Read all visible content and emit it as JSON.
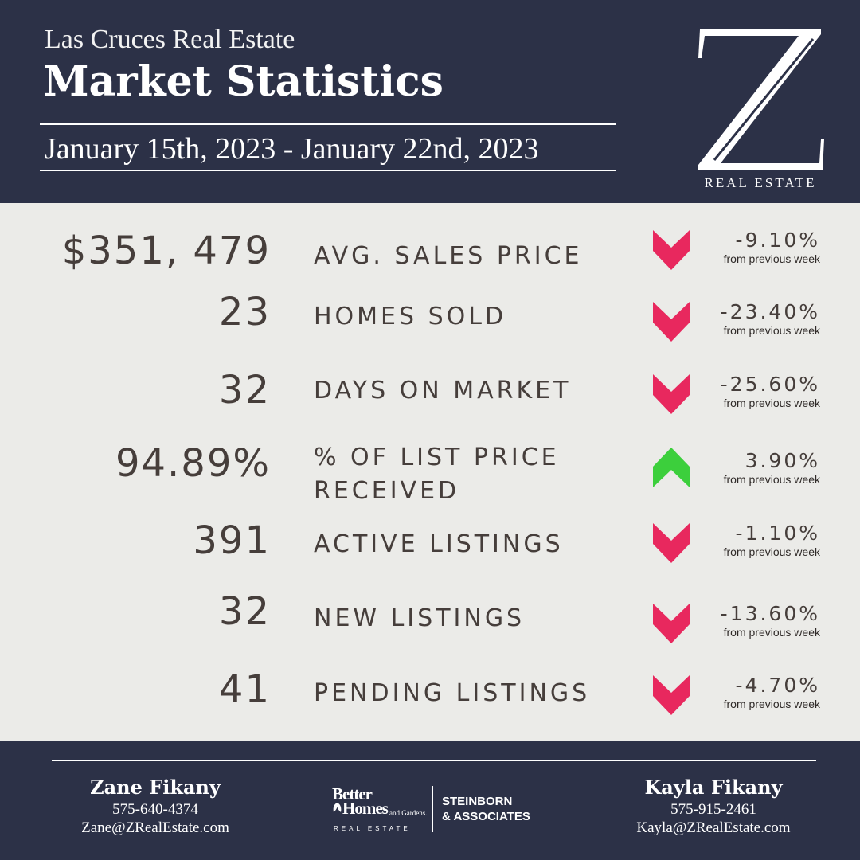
{
  "header": {
    "subtitle": "Las Cruces Real Estate",
    "title": "Market Statistics",
    "date_range": "January 15th, 2023 - January 22nd, 2023",
    "logo_letter": "Z",
    "logo_tagline": "REAL ESTATE"
  },
  "colors": {
    "navy": "#2c3147",
    "background": "#ebebe8",
    "text": "#463e3b",
    "down": "#e8285e",
    "up": "#3ccf3c"
  },
  "stats": [
    {
      "value": "$351, 479",
      "label": "AVG. SALES PRICE",
      "change": "-9.10%",
      "change_note": "from previous week",
      "direction": "down",
      "icon": "chevron-down-icon"
    },
    {
      "value": "23",
      "label": "HOMES SOLD",
      "change": "-23.40%",
      "change_note": "from previous week",
      "direction": "down",
      "icon": "chevron-down-icon"
    },
    {
      "value": "32",
      "label": "DAYS ON MARKET",
      "change": "-25.60%",
      "change_note": "from previous week",
      "direction": "down",
      "icon": "chevron-down-icon"
    },
    {
      "value": "94.89%",
      "label": "% OF LIST PRICE RECEIVED",
      "change": "3.90%",
      "change_note": "from previous week",
      "direction": "up",
      "icon": "chevron-up-icon"
    },
    {
      "value": "391",
      "label": "ACTIVE LISTINGS",
      "change": "-1.10%",
      "change_note": "from previous week",
      "direction": "down",
      "icon": "chevron-down-icon"
    },
    {
      "value": "32",
      "label": "NEW LISTINGS",
      "change": "-13.60%",
      "change_note": "from previous week",
      "direction": "down",
      "icon": "chevron-down-icon"
    },
    {
      "value": "41",
      "label": "PENDING LISTINGS",
      "change": "-4.70%",
      "change_note": "from previous week",
      "direction": "down",
      "icon": "chevron-down-icon"
    }
  ],
  "footer": {
    "agent_left": {
      "name": "Zane Fikany",
      "phone": "575-640-4374",
      "email": "Zane@ZRealEstate.com"
    },
    "agent_right": {
      "name": "Kayla Fikany",
      "phone": "575-915-2461",
      "email": "Kayla@ZRealEstate.com"
    },
    "brand": {
      "line1": "Better",
      "line2": "Homes",
      "line3": "and Gardens.",
      "line4": "REAL ESTATE",
      "partner_line1": "STEINBORN",
      "partner_line2": "& ASSOCIATES"
    }
  }
}
